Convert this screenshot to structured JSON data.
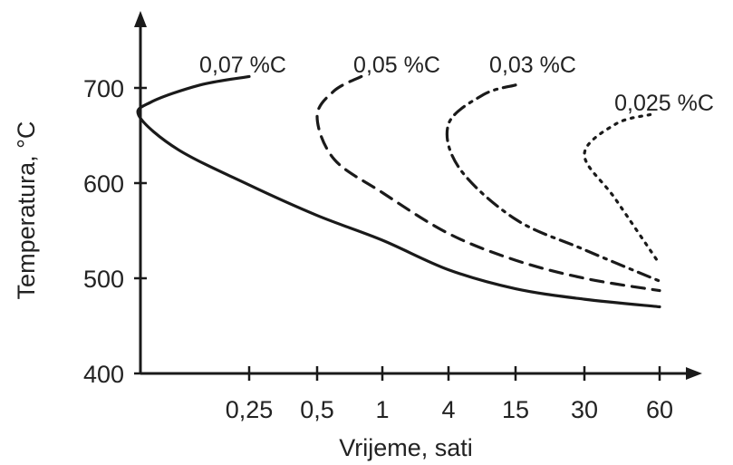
{
  "chart_data": {
    "type": "line",
    "title": "",
    "xlabel": "Vrijeme, sati",
    "ylabel": "Temperatura, °C",
    "x_ticks": [
      "0,25",
      "0,5",
      "1",
      "4",
      "15",
      "30",
      "60"
    ],
    "y_ticks": [
      400,
      500,
      600,
      700
    ],
    "ylim": [
      400,
      760
    ],
    "grid": false,
    "legend": "labels at curve tops",
    "series": [
      {
        "name": "0,07 %C",
        "line_style": "solid",
        "points": [
          {
            "x": "0,25",
            "y": 712
          },
          {
            "x": "0,15",
            "y": 703
          },
          {
            "x": "0,09",
            "y": 685
          },
          {
            "x": "0,08",
            "y": 670
          },
          {
            "x": "0,12",
            "y": 635
          },
          {
            "x": "0,25",
            "y": 598
          },
          {
            "x": "0,5",
            "y": 566
          },
          {
            "x": "1",
            "y": 540
          },
          {
            "x": "4",
            "y": 509
          },
          {
            "x": "15",
            "y": 489
          },
          {
            "x": "30",
            "y": 478
          },
          {
            "x": "60",
            "y": 470
          }
        ]
      },
      {
        "name": "0,05 %C",
        "line_style": "dashed",
        "points": [
          {
            "x": "0,8",
            "y": 712
          },
          {
            "x": "0,6",
            "y": 697
          },
          {
            "x": "0,5",
            "y": 670
          },
          {
            "x": "0,6",
            "y": 625
          },
          {
            "x": "1",
            "y": 590
          },
          {
            "x": "4",
            "y": 547
          },
          {
            "x": "15",
            "y": 519
          },
          {
            "x": "30",
            "y": 500
          },
          {
            "x": "60",
            "y": 487
          }
        ]
      },
      {
        "name": "0,03 %C",
        "line_style": "dash-dot",
        "points": [
          {
            "x": "15",
            "y": 703
          },
          {
            "x": "8",
            "y": 693
          },
          {
            "x": "4",
            "y": 662
          },
          {
            "x": "5",
            "y": 615
          },
          {
            "x": "15",
            "y": 562
          },
          {
            "x": "30",
            "y": 530
          },
          {
            "x": "60",
            "y": 497
          }
        ]
      },
      {
        "name": "0,025 %C",
        "line_style": "dotted",
        "points": [
          {
            "x": "55",
            "y": 672
          },
          {
            "x": "40",
            "y": 662
          },
          {
            "x": "30",
            "y": 630
          },
          {
            "x": "40",
            "y": 583
          },
          {
            "x": "60",
            "y": 515
          }
        ]
      }
    ]
  }
}
